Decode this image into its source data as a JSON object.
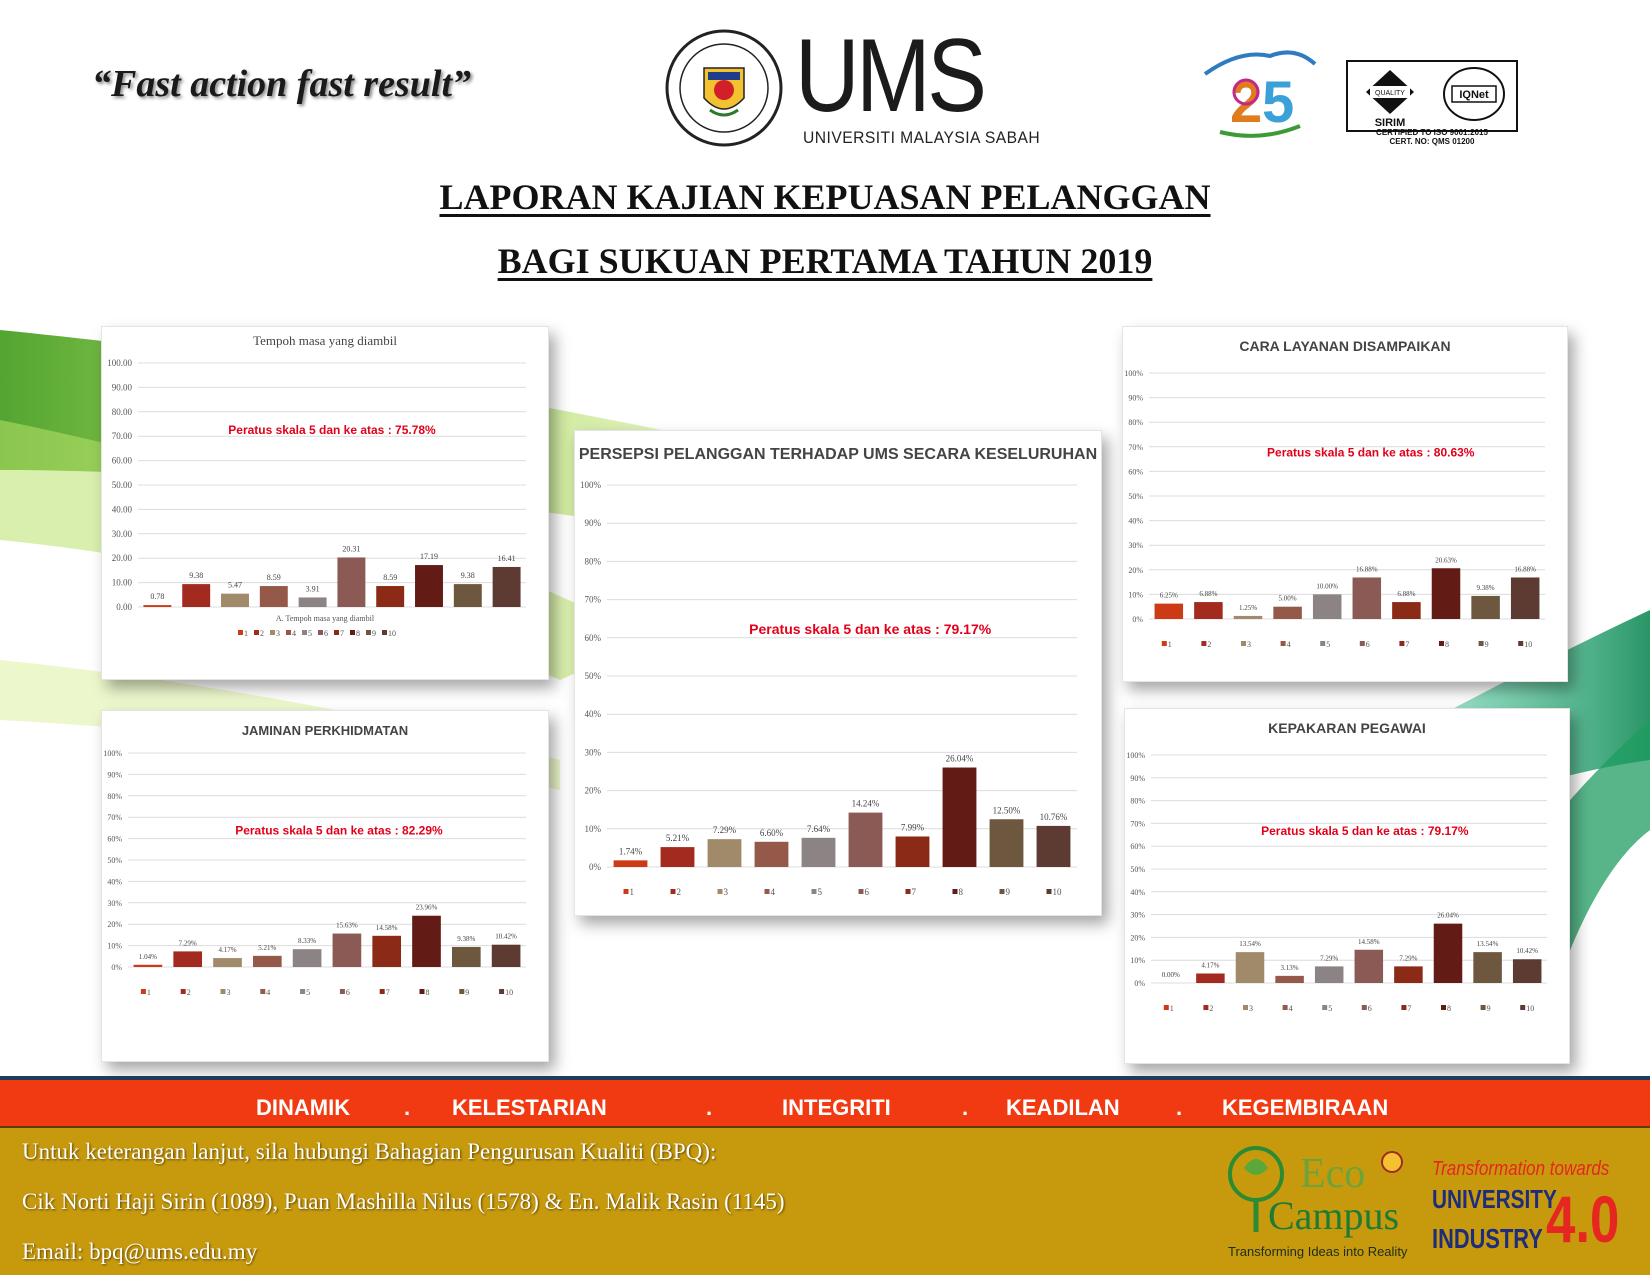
{
  "header": {
    "motto": "“Fast action fast result”",
    "logo_word": "UMS",
    "logo_subtitle": "UNIVERSITI MALAYSIA SABAH",
    "cert_text_1": "CERTIFIED TO ISO 9001:2015",
    "cert_text_2": "CERT. NO: QMS 01200"
  },
  "title": {
    "line1": "LAPORAN KAJIAN KEPUASAN PELANGGAN",
    "line2": "BAGI SUKUAN PERTAMA TAHUN 2019"
  },
  "colors": {
    "series": [
      "#cc3b15",
      "#a32a1f",
      "#a08a6a",
      "#95594a",
      "#8c8484",
      "#8c5a55",
      "#8b2a17",
      "#621b15",
      "#6d573f",
      "#5d3a32"
    ],
    "annotation": "#e2001a",
    "red_band": "#f23a12",
    "gold_band": "#c79a0e"
  },
  "chart_data": [
    {
      "id": "tempoh",
      "type": "bar",
      "title": "Tempoh masa yang diambil",
      "xlabel": "A. Tempoh masa yang diambil",
      "categories": [
        "1",
        "2",
        "3",
        "4",
        "5",
        "6",
        "7",
        "8",
        "9",
        "10"
      ],
      "values": [
        0.78,
        9.38,
        5.47,
        8.59,
        3.91,
        20.31,
        8.59,
        17.19,
        9.38,
        16.41
      ],
      "value_labels": [
        "0.78",
        "9.38",
        "5.47",
        "8.59",
        "3.91",
        "20.31",
        "8.59",
        "17.19",
        "9.38",
        "16.41"
      ],
      "yticks": [
        "0.00",
        "10.00",
        "20.00",
        "30.00",
        "40.00",
        "50.00",
        "60.00",
        "70.00",
        "80.00",
        "90.00",
        "100.00"
      ],
      "ylim": [
        0,
        100
      ],
      "annotation": "Peratus skala 5 dan ke atas : 75.78%",
      "legend": "bottom"
    },
    {
      "id": "jaminan",
      "type": "bar",
      "title": "JAMINAN PERKHIDMATAN",
      "categories": [
        "1",
        "2",
        "3",
        "4",
        "5",
        "6",
        "7",
        "8",
        "9",
        "10"
      ],
      "values": [
        1.04,
        7.29,
        4.17,
        5.21,
        8.33,
        15.63,
        14.58,
        23.96,
        9.38,
        10.42
      ],
      "value_labels": [
        "1.04%",
        "7.29%",
        "4.17%",
        "5.21%",
        "8.33%",
        "15.63%",
        "14.58%",
        "23.96%",
        "9.38%",
        "10.42%"
      ],
      "yticks": [
        "0%",
        "10%",
        "20%",
        "30%",
        "40%",
        "50%",
        "60%",
        "70%",
        "80%",
        "90%",
        "100%"
      ],
      "ylim": [
        0,
        100
      ],
      "annotation": "Peratus skala 5 dan ke atas : 82.29%",
      "legend": "bottom"
    },
    {
      "id": "persepsi",
      "type": "bar",
      "title": "PERSEPSI PELANGGAN TERHADAP UMS SECARA KESELURUHAN",
      "categories": [
        "1",
        "2",
        "3",
        "4",
        "5",
        "6",
        "7",
        "8",
        "9",
        "10"
      ],
      "values": [
        1.74,
        5.21,
        7.29,
        6.6,
        7.64,
        14.24,
        7.99,
        26.04,
        12.5,
        10.76
      ],
      "value_labels": [
        "1.74%",
        "5.21%",
        "7.29%",
        "6.60%",
        "7.64%",
        "14.24%",
        "7.99%",
        "26.04%",
        "12.50%",
        "10.76%"
      ],
      "yticks": [
        "0%",
        "10%",
        "20%",
        "30%",
        "40%",
        "50%",
        "60%",
        "70%",
        "80%",
        "90%",
        "100%"
      ],
      "ylim": [
        0,
        100
      ],
      "annotation": "Peratus skala 5 dan ke atas : 79.17%",
      "legend": "bottom"
    },
    {
      "id": "cara",
      "type": "bar",
      "title": "CARA LAYANAN DISAMPAIKAN",
      "categories": [
        "1",
        "2",
        "3",
        "4",
        "5",
        "6",
        "7",
        "8",
        "9",
        "10"
      ],
      "values": [
        6.25,
        6.88,
        1.25,
        5.0,
        10.0,
        16.88,
        6.88,
        20.63,
        9.38,
        16.88
      ],
      "value_labels": [
        "6.25%",
        "6.88%",
        "1.25%",
        "5.00%",
        "10.00%",
        "16.88%",
        "6.88%",
        "20.63%",
        "9.38%",
        "16.88%"
      ],
      "yticks": [
        "0%",
        "10%",
        "20%",
        "30%",
        "40%",
        "50%",
        "60%",
        "70%",
        "80%",
        "90%",
        "100%"
      ],
      "ylim": [
        0,
        100
      ],
      "annotation": "Peratus skala 5 dan ke atas : 80.63%",
      "legend": "bottom"
    },
    {
      "id": "kepakaran",
      "type": "bar",
      "title": "KEPAKARAN PEGAWAI",
      "categories": [
        "1",
        "2",
        "3",
        "4",
        "5",
        "6",
        "7",
        "8",
        "9",
        "10"
      ],
      "values": [
        0.0,
        4.17,
        13.54,
        3.13,
        7.29,
        14.58,
        7.29,
        26.04,
        13.54,
        10.42
      ],
      "value_labels": [
        "0.00%",
        "4.17%",
        "13.54%",
        "3.13%",
        "7.29%",
        "14.58%",
        "7.29%",
        "26.04%",
        "13.54%",
        "10.42%"
      ],
      "yticks": [
        "0%",
        "10%",
        "20%",
        "30%",
        "40%",
        "50%",
        "60%",
        "70%",
        "80%",
        "90%",
        "100%"
      ],
      "ylim": [
        0,
        100
      ],
      "annotation": "Peratus skala 5 dan ke atas : 79.17%",
      "legend": "bottom"
    }
  ],
  "footer": {
    "values": [
      "DINAMIK",
      ".",
      "KELESTARIAN",
      ".",
      "INTEGRITI",
      ".",
      "KEADILAN",
      ".",
      "KEGEMBIRAAN"
    ],
    "contact_line1": "Untuk keterangan lanjut, sila hubungi Bahagian Pengurusan Kualiti (BPQ):",
    "contact_line2": "Cik Norti Haji Sirin (1089), Puan Mashilla Nilus (1578) & En. Malik Rasin (1145)",
    "contact_line3": "Email: bpq@ums.edu.my",
    "eco_word1": "Eco",
    "eco_word2": "Campus",
    "eco_tagline": "Transforming Ideas into Reality",
    "transformation": "Transformation towards",
    "university": "UNIVERSITY",
    "industry": "INDUSTRY",
    "version": "4.0"
  }
}
